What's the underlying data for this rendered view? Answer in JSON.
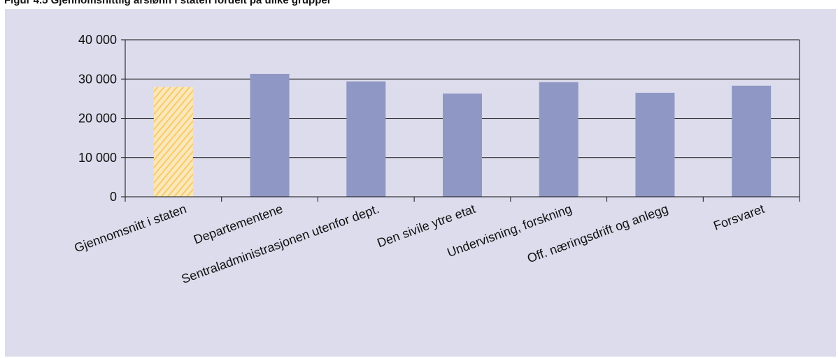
{
  "caption": "Figur 4.5 Gjennomsnittlig årslønn i staten fordelt på ulike grupper",
  "chart_data": {
    "type": "bar",
    "categories": [
      "Gjennomsnitt i staten",
      "Departementene",
      "Sentraladministrasjonen utenfor dept.",
      "Den sivile ytre etat",
      "Undervisning, forskning",
      "Off. næringsdrift og anlegg",
      "Forsvaret"
    ],
    "values": [
      28000,
      31300,
      29400,
      26300,
      29200,
      26500,
      28300
    ],
    "ylim": [
      0,
      40000
    ],
    "yticks": [
      0,
      10000,
      20000,
      30000,
      40000
    ],
    "ytick_labels": [
      "0",
      "10 000",
      "20 000",
      "30 000",
      "40 000"
    ],
    "grid": true,
    "highlight_index": 0,
    "colors": {
      "bar": "#8f98c4",
      "highlight": "#f5cf7e",
      "highlight_light": "#fbe7b8",
      "grid": "#111111",
      "panel": "#dcdcec"
    }
  }
}
